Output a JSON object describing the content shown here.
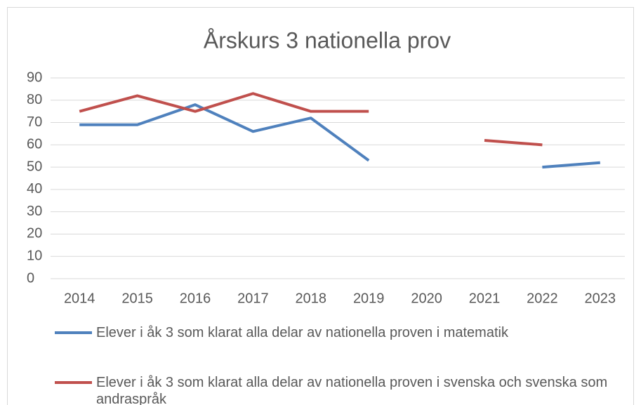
{
  "chart_data": {
    "type": "line",
    "title": "Årskurs 3 nationella prov",
    "categories": [
      "2014",
      "2015",
      "2016",
      "2017",
      "2018",
      "2019",
      "2020",
      "2021",
      "2022",
      "2023"
    ],
    "series": [
      {
        "name": "Elever i åk 3 som klarat alla delar av nationella proven i matematik",
        "color": "#4f81bd",
        "values": [
          69,
          69,
          78,
          66,
          72,
          53,
          null,
          null,
          50,
          52
        ]
      },
      {
        "name": "Elever i åk 3 som klarat alla delar av nationella proven i svenska och svenska som andraspråk",
        "color": "#c0504d",
        "values": [
          75,
          82,
          75,
          83,
          75,
          75,
          null,
          62,
          60,
          null
        ]
      }
    ],
    "ylim": [
      0,
      90
    ],
    "yticks": [
      0,
      10,
      20,
      30,
      40,
      50,
      60,
      70,
      80,
      90
    ],
    "grid": true,
    "legend": "bottom"
  }
}
